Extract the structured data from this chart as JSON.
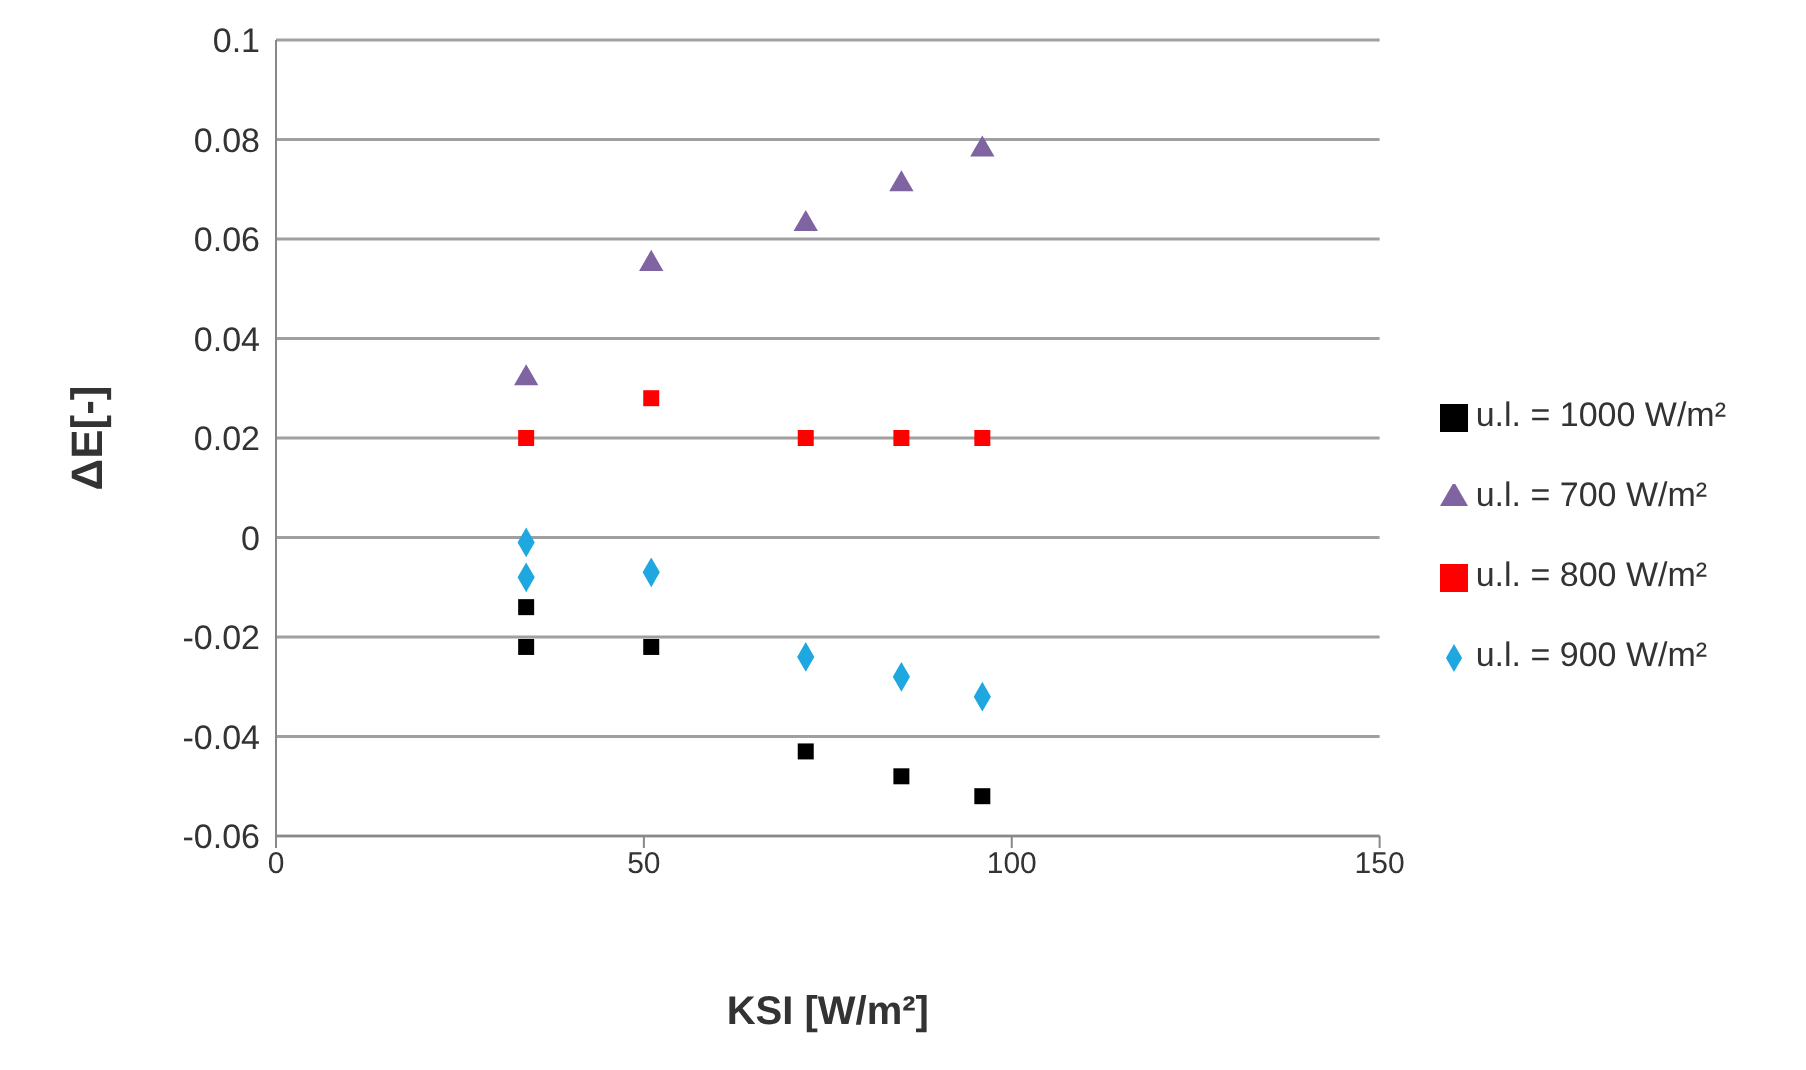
{
  "chart_data": {
    "type": "scatter",
    "xlabel": "KSI [W/m²]",
    "ylabel": "ΔE[-]",
    "xlim": [
      0,
      150
    ],
    "xticks": [
      0,
      50,
      100,
      150
    ],
    "ylim": [
      -0.06,
      0.1
    ],
    "yticks": [
      -0.06,
      -0.04,
      -0.02,
      0,
      0.02,
      0.04,
      0.06,
      0.08,
      0.1
    ],
    "grid": "y",
    "legend": "right",
    "series": [
      {
        "name": "u.l. = 1000 W/m²",
        "color": "#000000",
        "marker": "square",
        "x": [
          34,
          34,
          51,
          72,
          85,
          96
        ],
        "values": [
          -0.014,
          -0.022,
          -0.022,
          -0.043,
          -0.048,
          -0.052
        ]
      },
      {
        "name": "u.l. = 900 W/m²",
        "color": "#1fa8e0",
        "marker": "diamond",
        "x": [
          34,
          34,
          51,
          72,
          85,
          96
        ],
        "values": [
          -0.001,
          -0.008,
          -0.007,
          -0.024,
          -0.028,
          -0.032
        ]
      },
      {
        "name": "u.l. = 800 W/m²",
        "color": "#ff0000",
        "marker": "square",
        "x": [
          34,
          51,
          72,
          85,
          96
        ],
        "values": [
          0.02,
          0.028,
          0.02,
          0.02,
          0.02
        ]
      },
      {
        "name": "u.l. = 700 W/m²",
        "color": "#8064a2",
        "marker": "triangle",
        "x": [
          34,
          51,
          72,
          85,
          96
        ],
        "values": [
          0.032,
          0.055,
          0.063,
          0.071,
          0.078
        ]
      }
    ]
  }
}
